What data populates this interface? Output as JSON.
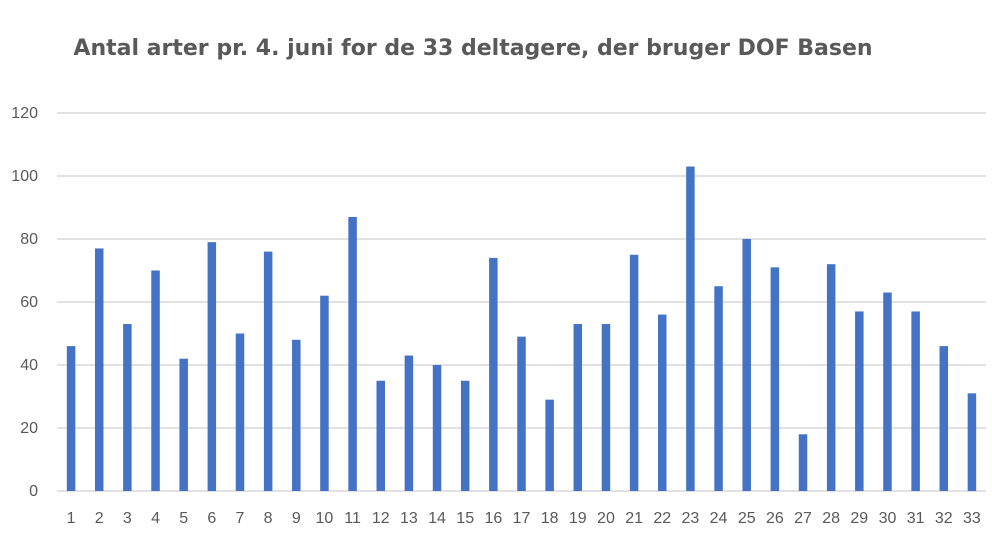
{
  "chart_data": {
    "type": "bar",
    "title": "Antal arter pr. 4. juni for de 33 deltagere, der bruger DOF Basen",
    "xlabel": "",
    "ylabel": "",
    "ylim": [
      0,
      120
    ],
    "yticks": [
      0,
      20,
      40,
      60,
      80,
      100,
      120
    ],
    "grid": true,
    "categories": [
      "1",
      "2",
      "3",
      "4",
      "5",
      "6",
      "7",
      "8",
      "9",
      "10",
      "11",
      "12",
      "13",
      "14",
      "15",
      "16",
      "17",
      "18",
      "19",
      "20",
      "21",
      "22",
      "23",
      "24",
      "25",
      "26",
      "27",
      "28",
      "29",
      "30",
      "31",
      "32",
      "33"
    ],
    "values": [
      46,
      77,
      53,
      70,
      42,
      79,
      50,
      76,
      48,
      62,
      87,
      35,
      43,
      40,
      35,
      74,
      49,
      29,
      53,
      53,
      75,
      56,
      103,
      65,
      80,
      71,
      18,
      72,
      57,
      63,
      57,
      46,
      31
    ],
    "colors": {
      "bar": "#4472C4",
      "grid": "#D9D9D9",
      "text": "#595959"
    }
  }
}
